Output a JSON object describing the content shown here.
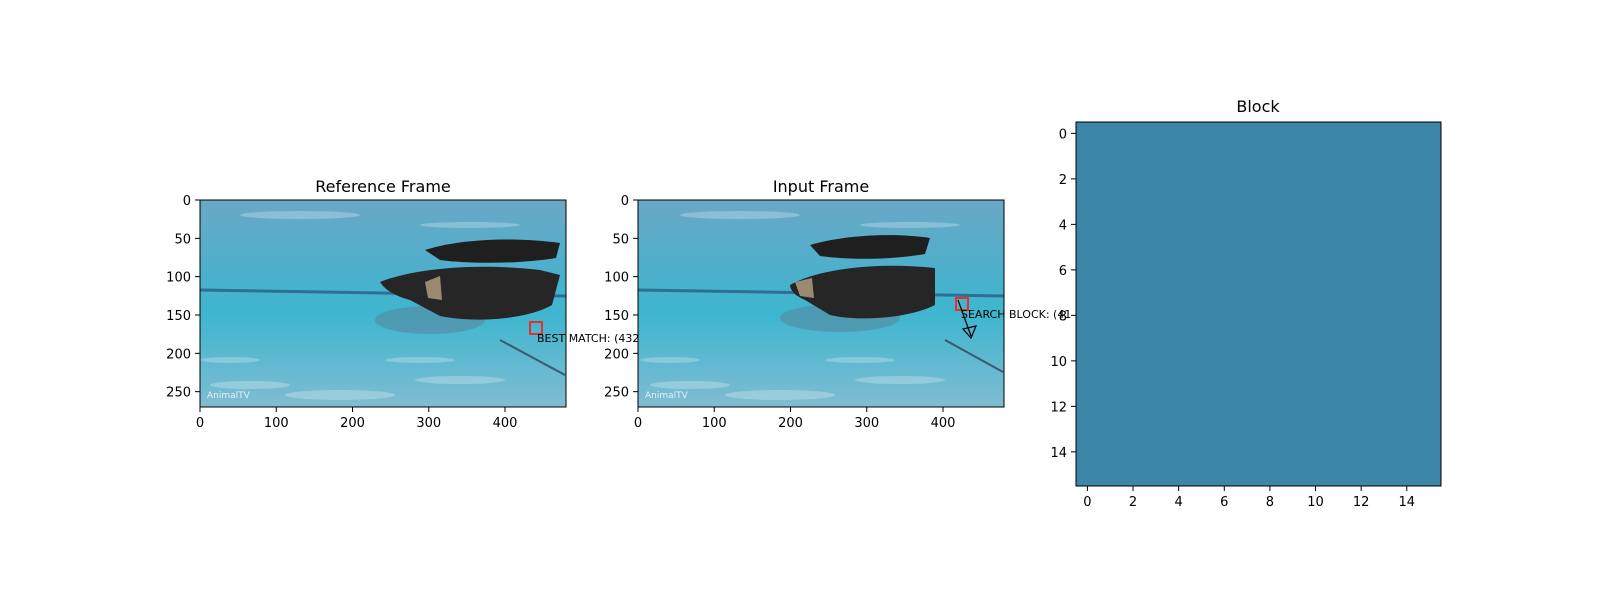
{
  "chart_data": [
    {
      "type": "image",
      "title": "Reference Frame",
      "image_size": [
        480,
        270
      ],
      "xticks": [
        0,
        100,
        200,
        300,
        400
      ],
      "yticks": [
        0,
        50,
        100,
        150,
        200,
        250
      ],
      "watermark": "AnimalTV",
      "box": {
        "x": 432,
        "y": 160,
        "w": 16,
        "h": 16,
        "color": "#e8302a"
      },
      "annotation": "BEST MATCH: (432"
    },
    {
      "type": "image",
      "title": "Input Frame",
      "image_size": [
        480,
        270
      ],
      "xticks": [
        0,
        100,
        200,
        300,
        400
      ],
      "yticks": [
        0,
        50,
        100,
        150,
        200,
        250
      ],
      "watermark": "AnimalTV",
      "box": {
        "x": 416,
        "y": 128,
        "w": 16,
        "h": 16,
        "color": "#e8302a"
      },
      "annotation": "SEARCH BLOCK: (41",
      "arrow": {
        "from": [
          416,
          128
        ],
        "to": [
          438,
          182
        ]
      }
    },
    {
      "type": "heatmap",
      "title": "Block",
      "xlim": [
        -0.5,
        15.5
      ],
      "ylim": [
        -0.5,
        15.5
      ],
      "xticks": [
        0,
        2,
        4,
        6,
        8,
        10,
        12,
        14
      ],
      "yticks": [
        0,
        2,
        4,
        6,
        8,
        10,
        12,
        14
      ],
      "fill_color": "#3b85a8"
    }
  ]
}
